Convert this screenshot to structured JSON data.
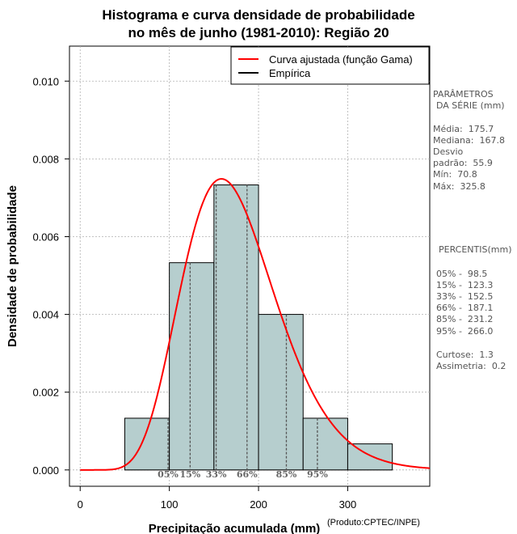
{
  "title_line1": "Histograma e curva densidade de probabilidade",
  "title_line2": "no mês de junho (1981-2010): Região 20",
  "legend": {
    "fitted": "Curva ajustada (função Gama)",
    "empirical": "Empírica"
  },
  "parametros": {
    "heading1": "PARÂMETROS",
    "heading2": "DA SÉRIE (mm)",
    "media": "Média:  175.7",
    "mediana": "Mediana:  167.8",
    "desvio1": "Desvio",
    "desvio2": "padrão:  55.9",
    "min": "Mín:  70.8",
    "max": "Máx:  325.8"
  },
  "percentis": {
    "heading": "PERCENTIS(mm)",
    "p05": "05% -  98.5",
    "p15": "15% -  123.3",
    "p33": "33% -  152.5",
    "p66": "66% -  187.1",
    "p85": "85% -  231.2",
    "p95": "95% -  266.0",
    "curtose": "Curtose:  1.3",
    "assimetria": "Assimetria:  0.2"
  },
  "produto": "(Produto:CPTEC/INPE)",
  "colors": {
    "bar_fill": "#b6cece",
    "curve": "#ff0000",
    "grid": "#b0b0b0",
    "percentile_line": "#555555"
  },
  "chart_data": {
    "type": "bar",
    "title": "Histograma e curva densidade de probabilidade no mês de junho (1981-2010): Região 20",
    "xlabel": "Precipitação acumulada (mm)",
    "ylabel": "Densidade de probabilidade",
    "xlim": [
      -12,
      392
    ],
    "ylim": [
      -0.00042,
      0.0109
    ],
    "x_ticks": [
      0,
      100,
      200,
      300
    ],
    "x_tick_labels": [
      "0",
      "100",
      "200",
      "300"
    ],
    "y_ticks": [
      0,
      0.002,
      0.004,
      0.006,
      0.008,
      0.01
    ],
    "y_tick_labels": [
      "0.000",
      "0.002",
      "0.004",
      "0.006",
      "0.008",
      "0.010"
    ],
    "grid": true,
    "legend_position": "top-right",
    "bins": [
      {
        "from": 50,
        "to": 100,
        "density": 0.00133
      },
      {
        "from": 100,
        "to": 150,
        "density": 0.00533
      },
      {
        "from": 150,
        "to": 200,
        "density": 0.00733
      },
      {
        "from": 200,
        "to": 250,
        "density": 0.004
      },
      {
        "from": 250,
        "to": 300,
        "density": 0.00133
      },
      {
        "from": 300,
        "to": 350,
        "density": 0.00067
      }
    ],
    "gamma_fit": {
      "shape": 10.0,
      "scale": 17.6
    },
    "curve_range": [
      0,
      392
    ],
    "percentiles": [
      {
        "label": "05%",
        "value": 98.5
      },
      {
        "label": "15%",
        "value": 123.3
      },
      {
        "label": "33%",
        "value": 152.5
      },
      {
        "label": "66%",
        "value": 187.1
      },
      {
        "label": "85%",
        "value": 231.2
      },
      {
        "label": "95%",
        "value": 266.0
      }
    ]
  }
}
